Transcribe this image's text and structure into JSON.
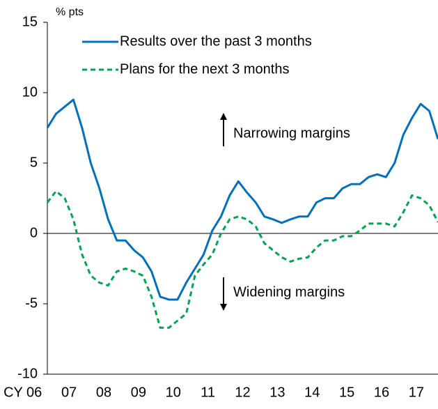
{
  "chart_data": {
    "type": "line",
    "ylabel": "% pts",
    "x": [
      2006.875,
      2007.125,
      2007.375,
      2007.625,
      2007.875,
      2008.125,
      2008.375,
      2008.625,
      2008.875,
      2009.125,
      2009.375,
      2009.625,
      2009.875,
      2010.125,
      2010.375,
      2010.625,
      2010.875,
      2011.125,
      2011.375,
      2011.625,
      2011.875,
      2012.125,
      2012.375,
      2012.625,
      2012.875,
      2013.125,
      2013.375,
      2013.625,
      2013.875,
      2014.125,
      2014.375,
      2014.625,
      2014.875,
      2015.125,
      2015.375,
      2015.625,
      2015.875,
      2016.125,
      2016.375,
      2016.625,
      2016.875,
      2017.125,
      2017.375,
      2017.625,
      2017.875,
      2018.125
    ],
    "series": [
      {
        "name": "Results over the past 3 months",
        "color": "#0070c0",
        "dash": false,
        "values": [
          7.5,
          8.5,
          9.0,
          9.5,
          7.5,
          5.0,
          3.2,
          1.0,
          -0.5,
          -0.5,
          -1.2,
          -1.7,
          -2.7,
          -4.5,
          -4.7,
          -4.7,
          -3.5,
          -2.5,
          -1.5,
          0.2,
          1.2,
          2.7,
          3.7,
          2.9,
          2.2,
          1.2,
          1.0,
          0.75,
          1.0,
          1.2,
          1.2,
          2.2,
          2.5,
          2.5,
          3.2,
          3.5,
          3.5,
          4.0,
          4.2,
          4.0,
          5.0,
          7.0,
          8.2,
          9.2,
          8.7,
          6.7
        ]
      },
      {
        "name": "Plans for the next 3 months",
        "color": "#00a650",
        "dash": true,
        "values": [
          2.2,
          3.0,
          2.5,
          1.0,
          -1.5,
          -3.0,
          -3.5,
          -3.7,
          -2.7,
          -2.5,
          -2.7,
          -3.0,
          -4.5,
          -6.7,
          -6.7,
          -6.2,
          -5.7,
          -3.0,
          -2.2,
          -1.5,
          0.0,
          1.0,
          1.2,
          1.0,
          0.5,
          -0.7,
          -1.2,
          -1.7,
          -2.0,
          -1.8,
          -1.7,
          -1.0,
          -0.5,
          -0.5,
          -0.2,
          -0.2,
          0.2,
          0.7,
          0.7,
          0.7,
          0.5,
          1.5,
          2.7,
          2.5,
          2.0,
          0.8
        ]
      }
    ],
    "xlim": [
      2006.875,
      2018.125
    ],
    "xticks": [
      {
        "value": 2006.5,
        "label": "CY 06"
      },
      {
        "value": 2007.5,
        "label": "07"
      },
      {
        "value": 2008.5,
        "label": "08"
      },
      {
        "value": 2009.5,
        "label": "09"
      },
      {
        "value": 2010.5,
        "label": "10"
      },
      {
        "value": 2011.5,
        "label": "11"
      },
      {
        "value": 2012.5,
        "label": "12"
      },
      {
        "value": 2013.5,
        "label": "13"
      },
      {
        "value": 2014.5,
        "label": "14"
      },
      {
        "value": 2015.5,
        "label": "15"
      },
      {
        "value": 2016.5,
        "label": "16"
      },
      {
        "value": 2017.5,
        "label": "17"
      }
    ],
    "ylim": [
      -10,
      15
    ],
    "yticks": [
      -10,
      -5,
      0,
      5,
      10,
      15
    ],
    "annotations": [
      "Narrowing margins",
      "Widening margins"
    ],
    "grid": false
  }
}
